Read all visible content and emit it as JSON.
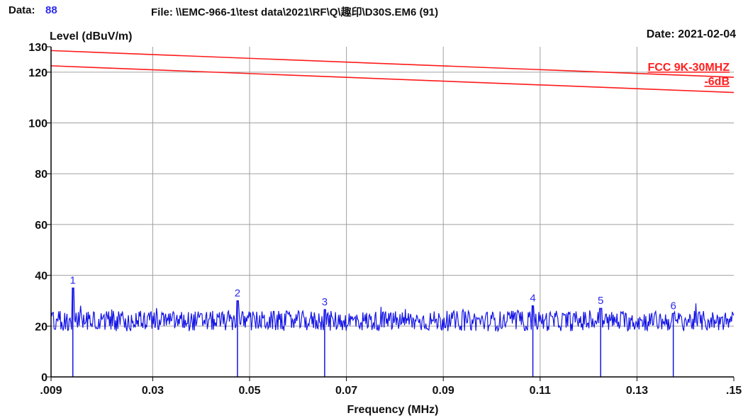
{
  "header": {
    "data_label": "Data:",
    "data_value": "88",
    "file_path": "File: \\\\EMC-966-1\\test data\\2021\\RF\\Q\\趣印\\D30S.EM6  (91)"
  },
  "colors": {
    "trace": "#1414e6",
    "limit": "#ff1a1a",
    "grid": "#a0a0a0",
    "marker": "#1414e6"
  },
  "chart_data": {
    "type": "line",
    "title": "",
    "ylabel": "Level (dBuV/m)",
    "xlabel": "Frequency (MHz)",
    "date": "Date: 2021-02-04",
    "xlim": [
      0.009,
      0.15
    ],
    "ylim": [
      0,
      130
    ],
    "x_tick_values": [
      0.009,
      0.03,
      0.05,
      0.07,
      0.09,
      0.11,
      0.13,
      0.15
    ],
    "x_tick_labels": [
      ".009",
      "0.03",
      "0.05",
      "0.07",
      "0.09",
      "0.11",
      "0.13",
      ".15"
    ],
    "y_tick_values": [
      0,
      20,
      40,
      60,
      80,
      100,
      120,
      130
    ],
    "y_tick_labels": [
      "0",
      "20",
      "40",
      "60",
      "80",
      "100",
      "120",
      "130"
    ],
    "grid": true,
    "limit_lines": [
      {
        "name": "FCC 9K-30MHZ",
        "x": [
          0.009,
          0.15
        ],
        "y": [
          128.5,
          118.0
        ]
      },
      {
        "name": "-6dB",
        "x": [
          0.009,
          0.15
        ],
        "y": [
          122.5,
          112.0
        ]
      }
    ],
    "trace_summary": {
      "baseline_dBuV_m": 22,
      "noise_peak_to_peak_dB": 8
    },
    "markers": [
      {
        "label": "1",
        "x": 0.0135,
        "y": 35.0
      },
      {
        "label": "2",
        "x": 0.0475,
        "y": 30.0
      },
      {
        "label": "3",
        "x": 0.0655,
        "y": 26.5
      },
      {
        "label": "4",
        "x": 0.1085,
        "y": 28.0
      },
      {
        "label": "5",
        "x": 0.1225,
        "y": 27.0
      },
      {
        "label": "6",
        "x": 0.1375,
        "y": 25.0
      }
    ]
  }
}
